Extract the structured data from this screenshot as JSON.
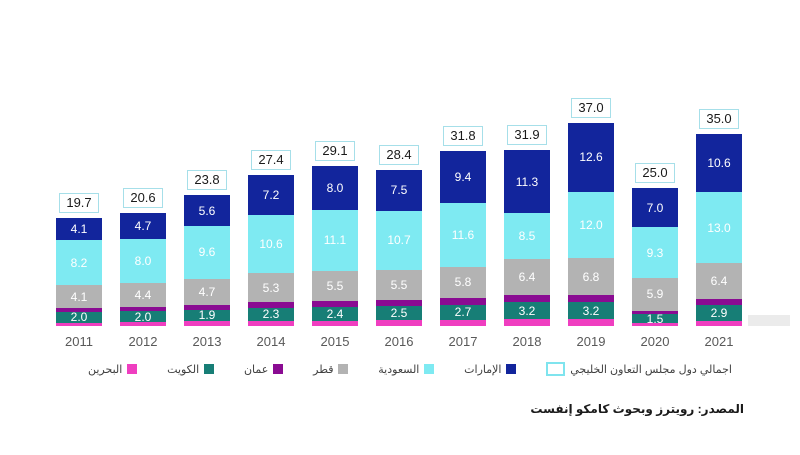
{
  "chart_data": {
    "type": "bar",
    "stacked": true,
    "title": "",
    "xlabel": "",
    "ylabel": "",
    "grid": false,
    "legend_position": "bottom",
    "value_format": "one-decimal",
    "categories": [
      "2011",
      "2012",
      "2013",
      "2014",
      "2015",
      "2016",
      "2017",
      "2018",
      "2019",
      "2020",
      "2021"
    ],
    "series_order": "bottom-to-top",
    "series": [
      {
        "name": "البحرين",
        "color": "#ef3ec0",
        "labels_visible": false,
        "values_estimated": true,
        "values": [
          0.6,
          0.7,
          1.0,
          1.0,
          1.0,
          1.1,
          1.1,
          1.2,
          1.2,
          0.6,
          1.0
        ]
      },
      {
        "name": "الكويت",
        "color": "#177e76",
        "labels_visible": true,
        "values": [
          2.0,
          2.0,
          1.9,
          2.3,
          2.4,
          2.5,
          2.7,
          3.2,
          3.2,
          1.5,
          2.9
        ]
      },
      {
        "name": "عمان",
        "color": "#8a0b92",
        "labels_visible": false,
        "values_estimated": true,
        "values": [
          0.7,
          0.8,
          1.0,
          1.0,
          1.1,
          1.1,
          1.2,
          1.3,
          1.2,
          0.7,
          1.1
        ]
      },
      {
        "name": "قطر",
        "color": "#b3b3b3",
        "labels_visible": true,
        "values": [
          4.1,
          4.4,
          4.7,
          5.3,
          5.5,
          5.5,
          5.8,
          6.4,
          6.8,
          5.9,
          6.4
        ]
      },
      {
        "name": "السعودية",
        "color": "#7eeaf2",
        "labels_visible": true,
        "values": [
          8.2,
          8.0,
          9.6,
          10.6,
          11.1,
          10.7,
          11.6,
          8.5,
          12.0,
          9.3,
          13.0
        ]
      },
      {
        "name": "الإمارات",
        "color": "#12259c",
        "labels_visible": true,
        "values": [
          4.1,
          4.7,
          5.6,
          7.2,
          8.0,
          7.5,
          9.4,
          11.3,
          12.6,
          7.0,
          10.6
        ]
      }
    ],
    "totals": {
      "name": "اجمالي دول مجلس التعاون الخليجي",
      "values": [
        19.7,
        20.6,
        23.8,
        27.4,
        29.1,
        28.4,
        31.8,
        31.9,
        37.0,
        25.0,
        35.0
      ],
      "label_style": "white-box-cyan-border"
    }
  },
  "legend": {
    "items": [
      {
        "label": "البحرين",
        "color": "#ef3ec0",
        "style": "filled"
      },
      {
        "label": "الكويت",
        "color": "#177e76",
        "style": "filled"
      },
      {
        "label": "عمان",
        "color": "#8a0b92",
        "style": "filled"
      },
      {
        "label": "قطر",
        "color": "#b3b3b3",
        "style": "filled"
      },
      {
        "label": "السعودية",
        "color": "#7eeaf2",
        "style": "filled"
      },
      {
        "label": "الإمارات",
        "color": "#12259c",
        "style": "filled"
      },
      {
        "label": "اجمالي دول مجلس التعاون الخليجي",
        "color": "#7fe4ee",
        "style": "outlined"
      }
    ]
  },
  "source_label": "المصدر: رويترز وبحوث كامكو إنفست",
  "colors": {
    "background": "#ffffff",
    "segment_label_text": "#ffffff",
    "total_label_text": "#1a1a1a",
    "total_label_border": "#a6dfe9",
    "year_label_text": "#595959",
    "legend_text": "#404040",
    "source_text": "#1a1a1a"
  }
}
